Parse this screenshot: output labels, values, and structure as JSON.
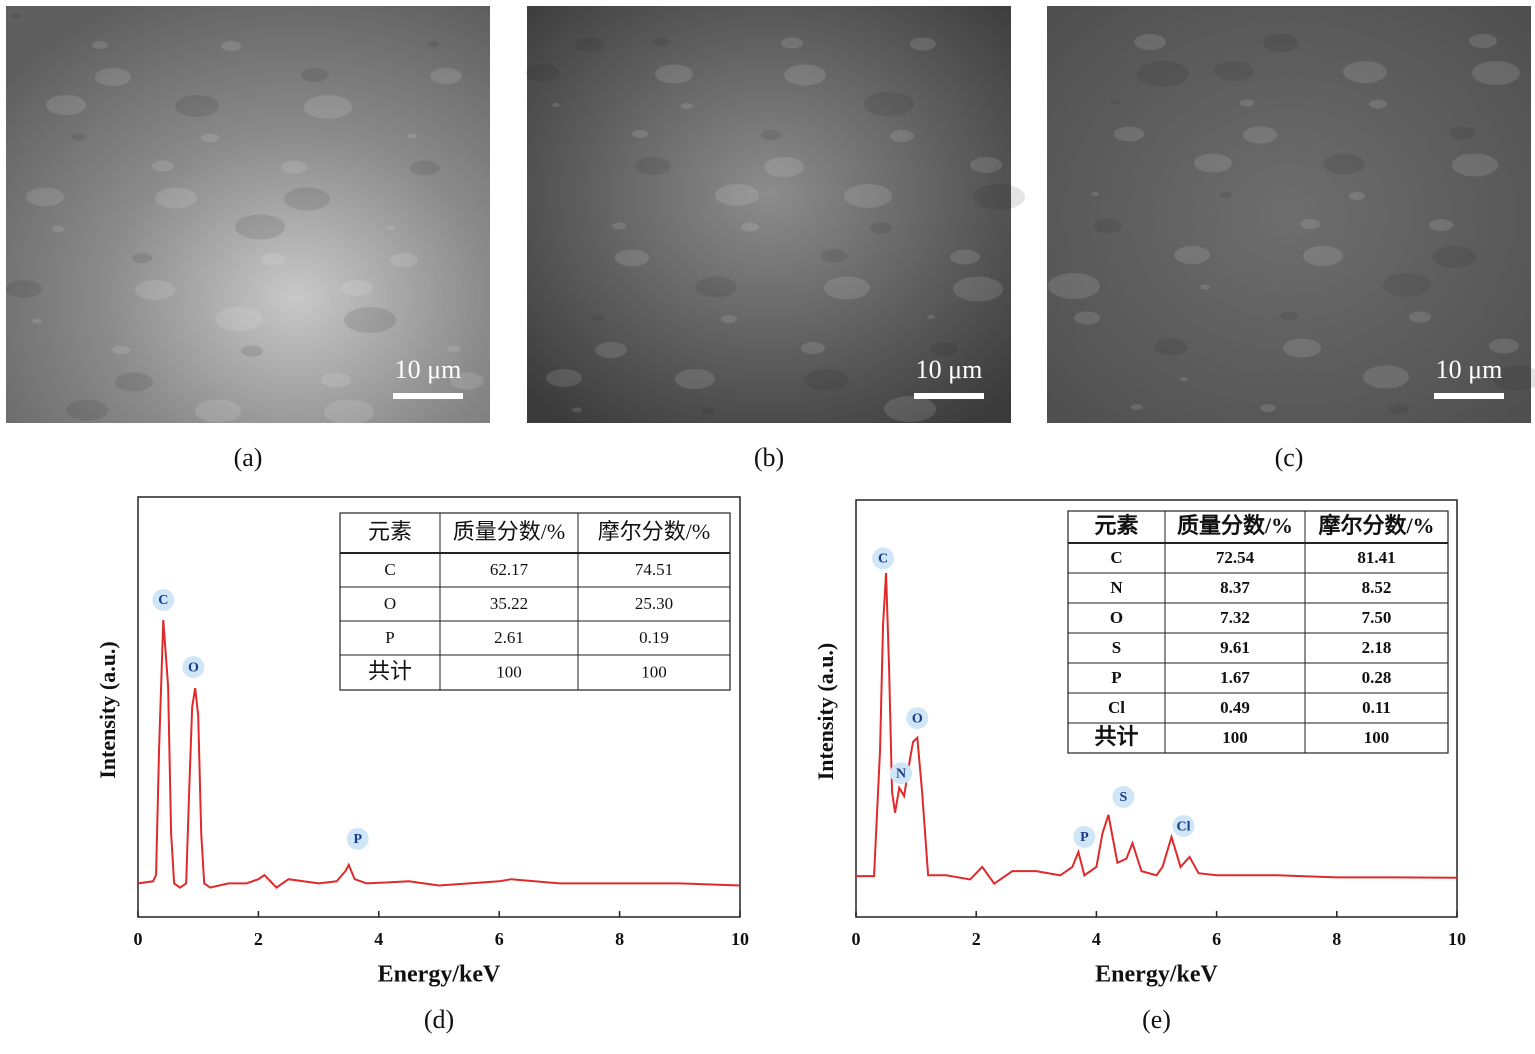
{
  "images": [
    {
      "scale_bar": "10 μm",
      "label": "(a)"
    },
    {
      "scale_bar": "10 μm",
      "label": "(b)"
    },
    {
      "scale_bar": "10 μm",
      "label": "(c)"
    }
  ],
  "chart_data": [
    {
      "type": "line",
      "caption": "(d)",
      "xlabel": "Energy/keV",
      "ylabel": "Intensity (a.u.)",
      "xlim": [
        0,
        10
      ],
      "xticks": [
        0,
        2,
        4,
        6,
        8,
        10
      ],
      "ylim": [
        0,
        100
      ],
      "x": [
        0,
        0.25,
        0.3,
        0.35,
        0.42,
        0.5,
        0.55,
        0.6,
        0.7,
        0.8,
        0.85,
        0.9,
        0.95,
        1.0,
        1.05,
        1.1,
        1.2,
        1.5,
        1.8,
        2.0,
        2.1,
        2.3,
        2.5,
        3.0,
        3.3,
        3.45,
        3.5,
        3.6,
        3.8,
        4.5,
        5.0,
        6.0,
        6.2,
        7.0,
        8.0,
        9.0,
        10
      ],
      "series": [
        {
          "color": "#e02a2a",
          "values": [
            8,
            8.5,
            10,
            40,
            70.7,
            55,
            20,
            8,
            7,
            8,
            30,
            50,
            54.5,
            48,
            20,
            8,
            7,
            8,
            8,
            9,
            10,
            7,
            9,
            8,
            8.5,
            11,
            12.4,
            9,
            8,
            8.5,
            7.5,
            8.5,
            9,
            8,
            8,
            8,
            7.5
          ]
        }
      ],
      "annotations": [
        {
          "text": "C",
          "x": 0.42,
          "y": 75.5
        },
        {
          "text": "O",
          "x": 0.92,
          "y": 59.5
        },
        {
          "text": "P",
          "x": 3.65,
          "y": 18.6
        }
      ],
      "table": {
        "header": [
          "元素",
          "质量分数/%",
          "摩尔分数/%"
        ],
        "rows": [
          [
            "C",
            "62.17",
            "74.51"
          ],
          [
            "O",
            "35.22",
            "25.30"
          ],
          [
            "P",
            "2.61",
            "0.19"
          ],
          [
            "共计",
            "100",
            "100"
          ]
        ]
      }
    },
    {
      "type": "line",
      "caption": "(e)",
      "xlabel": "Energy/keV",
      "ylabel": "Intensity (a.u.)",
      "xlim": [
        0,
        10
      ],
      "xticks": [
        0,
        2,
        4,
        6,
        8,
        10
      ],
      "ylim": [
        0,
        100
      ],
      "x": [
        0,
        0.3,
        0.4,
        0.45,
        0.5,
        0.55,
        0.6,
        0.65,
        0.72,
        0.8,
        0.9,
        0.95,
        1.02,
        1.1,
        1.2,
        1.5,
        1.9,
        2.1,
        2.3,
        2.6,
        3.0,
        3.4,
        3.6,
        3.7,
        3.8,
        3.9,
        4.0,
        4.1,
        4.2,
        4.35,
        4.5,
        4.6,
        4.75,
        5.0,
        5.1,
        5.25,
        5.4,
        5.55,
        5.7,
        6.0,
        7.0,
        8.0,
        9.0,
        10
      ],
      "series": [
        {
          "color": "#e02a2a",
          "values": [
            9.8,
            9.8,
            40,
            70,
            82.5,
            60,
            30,
            25,
            31,
            29,
            38,
            42,
            43,
            30,
            10,
            10,
            9,
            12,
            8,
            11,
            11,
            10,
            12,
            15.6,
            10,
            11,
            12,
            20,
            24.5,
            13,
            14,
            17.7,
            11,
            10,
            12,
            19.2,
            12,
            14.4,
            10.5,
            10,
            10,
            9.5,
            9.5,
            9.4
          ]
        }
      ],
      "annotations": [
        {
          "text": "C",
          "x": 0.45,
          "y": 86
        },
        {
          "text": "N",
          "x": 0.75,
          "y": 34.5
        },
        {
          "text": "O",
          "x": 1.02,
          "y": 47.7
        },
        {
          "text": "P",
          "x": 3.8,
          "y": 19.2
        },
        {
          "text": "S",
          "x": 4.45,
          "y": 28.8
        },
        {
          "text": "Cl",
          "x": 5.45,
          "y": 21.8
        }
      ],
      "table": {
        "header": [
          "元素",
          "质量分数/%",
          "摩尔分数/%"
        ],
        "rows": [
          [
            "C",
            "72.54",
            "81.41"
          ],
          [
            "N",
            "8.37",
            "8.52"
          ],
          [
            "O",
            "7.32",
            "7.50"
          ],
          [
            "S",
            "9.61",
            "2.18"
          ],
          [
            "P",
            "1.67",
            "0.28"
          ],
          [
            "Cl",
            "0.49",
            "0.11"
          ],
          [
            "共计",
            "100",
            "100"
          ]
        ]
      }
    }
  ]
}
